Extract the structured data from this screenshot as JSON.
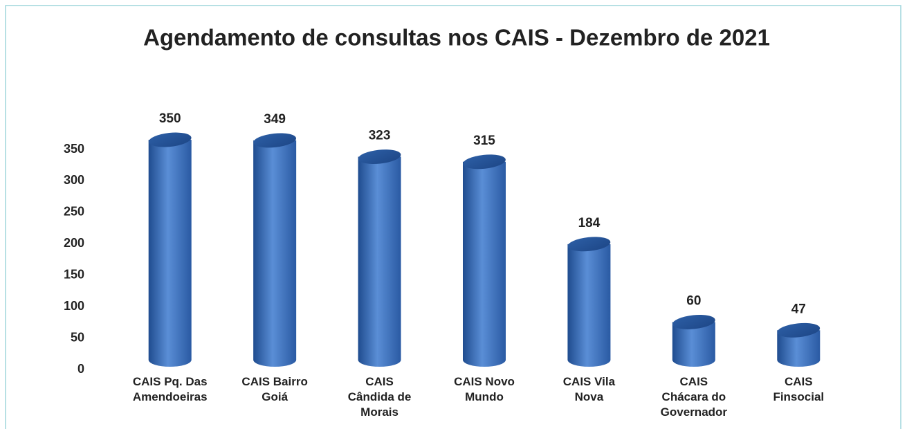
{
  "chart_data": {
    "type": "bar",
    "title": "Agendamento de consultas nos CAIS - Dezembro de 2021",
    "categories": [
      "CAIS Pq. Das Amendoeiras",
      "CAIS Bairro Goiá",
      "CAIS Cândida de Morais",
      "CAIS Novo Mundo",
      "CAIS Vila Nova",
      "CAIS Chácara do Governador",
      "CAIS Finsocial"
    ],
    "values": [
      350,
      349,
      323,
      315,
      184,
      60,
      47
    ],
    "color": "#3f6fb8",
    "ylim": [
      0,
      350
    ],
    "yticks": [
      0,
      50,
      100,
      150,
      200,
      250,
      300,
      350
    ],
    "grid": false
  }
}
